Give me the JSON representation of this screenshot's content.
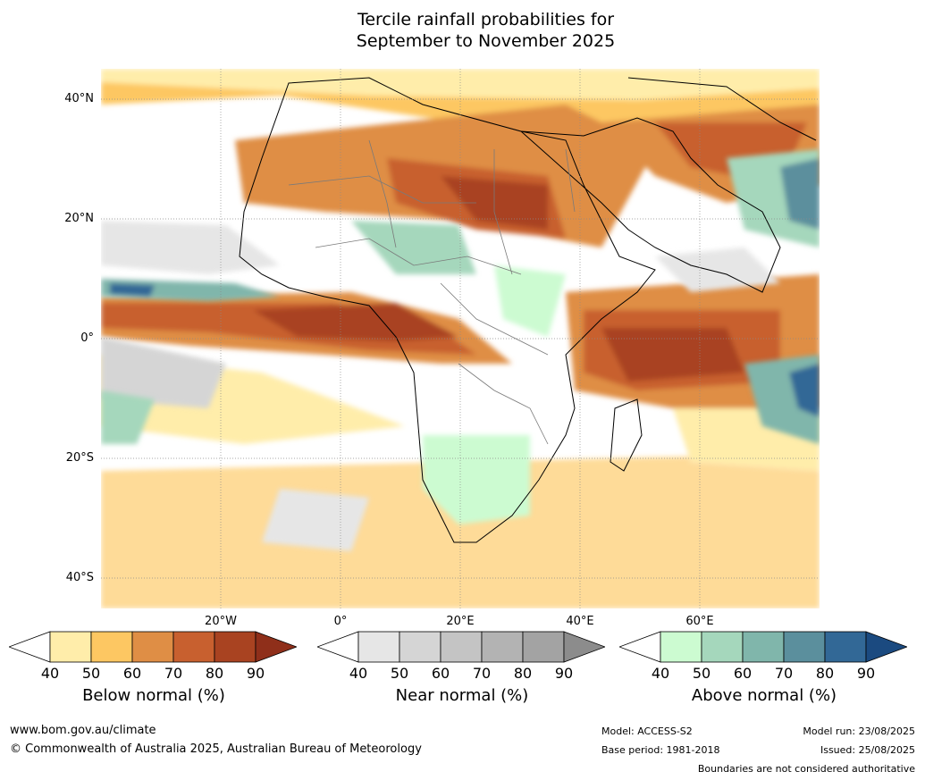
{
  "title": {
    "line1": "Tercile rainfall probabilities for",
    "line2": "September to November 2025"
  },
  "map": {
    "lat_labels": [
      "40°N",
      "20°N",
      "0°",
      "20°S",
      "40°S"
    ],
    "lon_labels": [
      "20°W",
      "0°",
      "20°E",
      "40°E",
      "60°E"
    ]
  },
  "legend": {
    "below": {
      "title": "Below normal (%)",
      "ticks": [
        "40",
        "50",
        "60",
        "70",
        "80",
        "90"
      ],
      "colors": [
        "#ffedaa",
        "#fdc762",
        "#df8e45",
        "#c8602f",
        "#a94321",
        "#8f2f1a"
      ]
    },
    "near": {
      "title": "Near normal (%)",
      "ticks": [
        "40",
        "50",
        "60",
        "70",
        "80",
        "90"
      ],
      "colors": [
        "#e6e6e6",
        "#d5d5d5",
        "#c4c4c4",
        "#b3b3b3",
        "#a3a3a3",
        "#8c8c8c"
      ]
    },
    "above": {
      "title": "Above normal (%)",
      "ticks": [
        "40",
        "50",
        "60",
        "70",
        "80",
        "90"
      ],
      "colors": [
        "#ccfbd1",
        "#a5d7bc",
        "#80b6ab",
        "#5b8f9d",
        "#326896",
        "#1b4a80"
      ]
    }
  },
  "footer": {
    "website": "www.bom.gov.au/climate",
    "copyright": "© Commonwealth of Australia 2025, Australian Bureau of Meteorology",
    "model": "Model: ACCESS-S2",
    "base_period": "Base period: 1981-2018",
    "model_run": "Model run: 23/08/2025",
    "issued": "Issued: 25/08/2025",
    "disclaimer": "Boundaries are not considered authoritative"
  }
}
